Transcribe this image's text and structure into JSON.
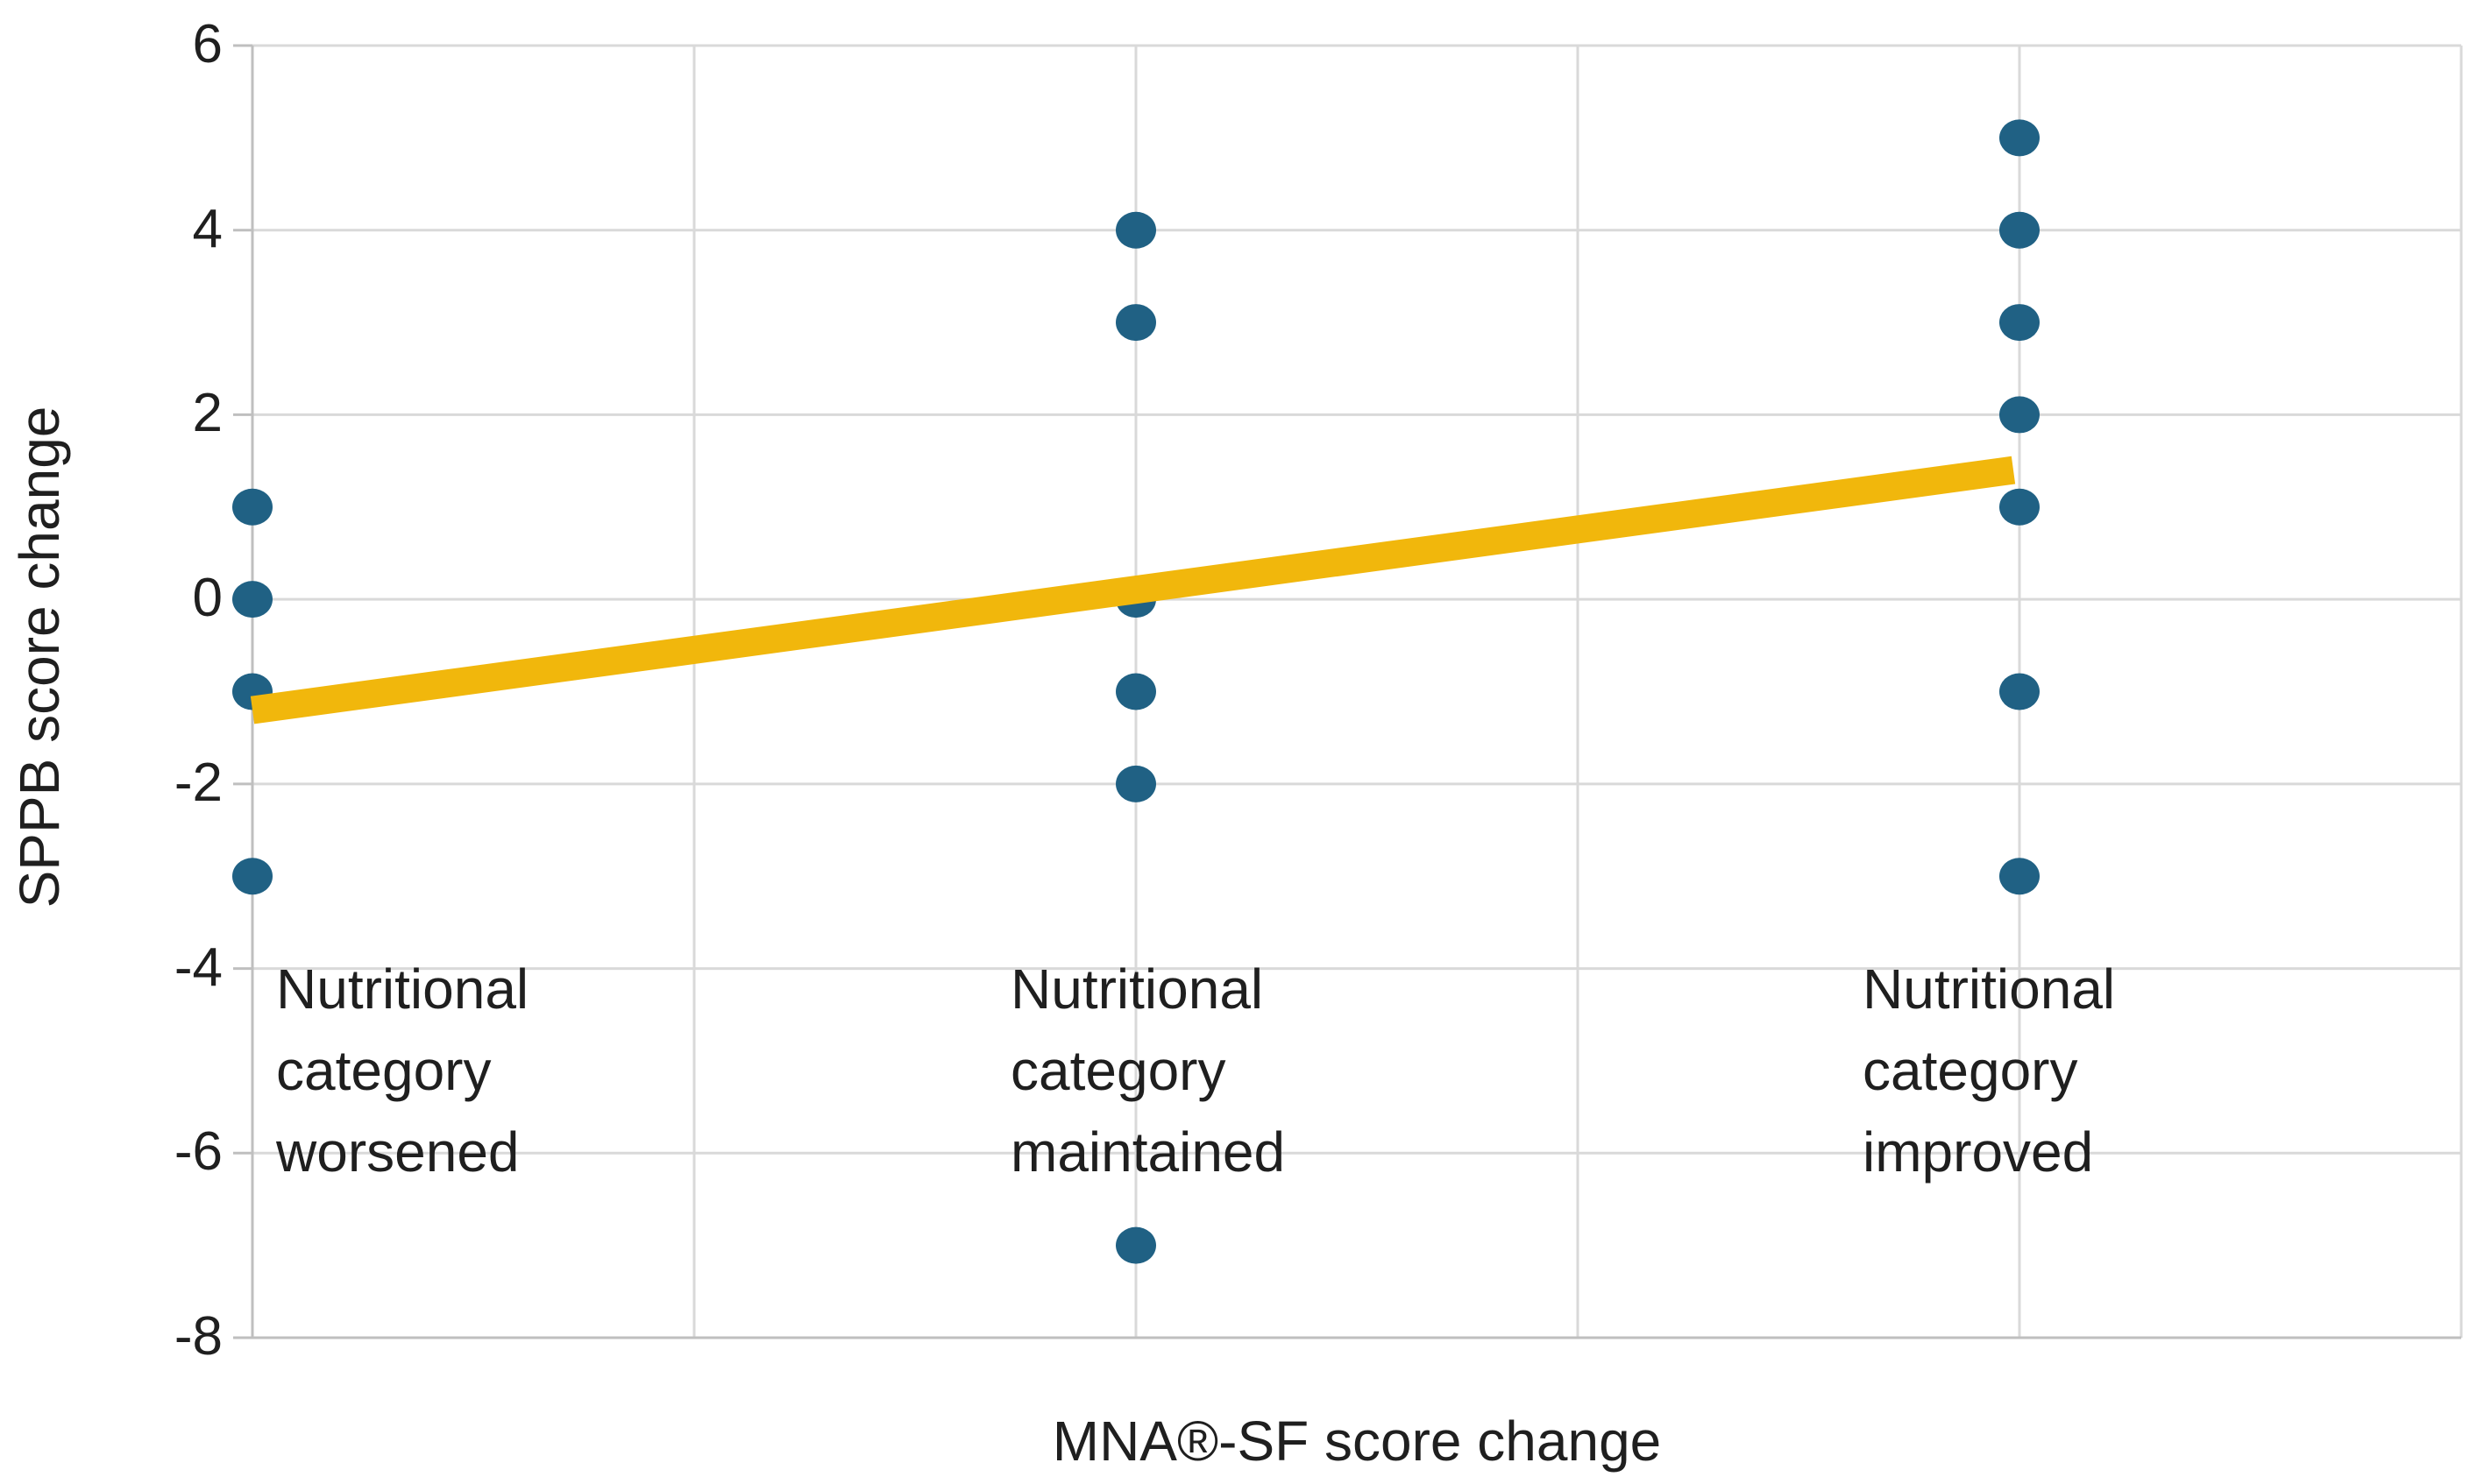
{
  "chart_data": {
    "type": "scatter",
    "title": "",
    "xlabel": "MNA®-SF score change",
    "ylabel": "SPPB score change",
    "x_axis": {
      "min": -1,
      "max": 1.5,
      "gridline_interval": 0.5,
      "tick_labels_shown": false
    },
    "y_axis": {
      "min": -8,
      "max": 6,
      "tick_interval": 2,
      "tick_labels": [
        "6",
        "4",
        "2",
        "0",
        "-2",
        "-4",
        "-6",
        "-8"
      ]
    },
    "grid": "on",
    "legend": "none",
    "groups": [
      {
        "x": -1,
        "label": "Nutritional category worsened",
        "label_lines": [
          "Nutritional",
          "category",
          "worsened"
        ],
        "points": [
          1,
          0,
          -1,
          -3
        ]
      },
      {
        "x": 0,
        "label": "Nutritional category maintained",
        "label_lines": [
          "Nutritional",
          "category",
          "maintained"
        ],
        "points": [
          4,
          3,
          0,
          -1,
          -2,
          -7
        ]
      },
      {
        "x": 1,
        "label": "Nutritional category improved",
        "label_lines": [
          "Nutritional",
          "category",
          "improved"
        ],
        "points": [
          5,
          4,
          3,
          2,
          1,
          -1,
          -3
        ]
      }
    ],
    "trendline": {
      "x_start": -1,
      "y_start": -1.2,
      "x_end": 1,
      "y_end": 1.4
    },
    "colors": {
      "point": "#206184",
      "trendline": "#F1B70C",
      "gridline": "#D9D9D9",
      "axis_line": "#BFBFBF",
      "text": "#1F1F1F"
    }
  }
}
